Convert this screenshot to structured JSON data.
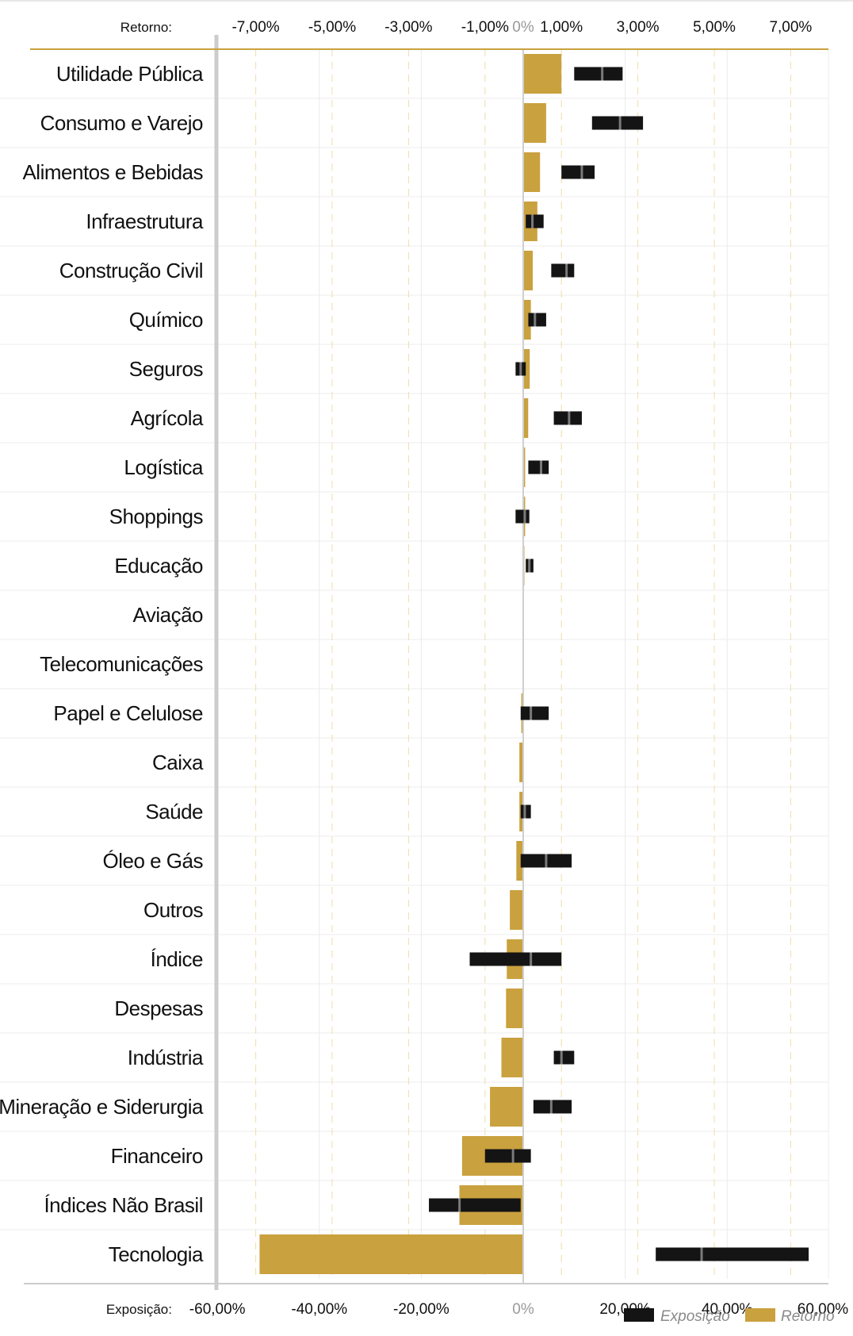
{
  "chart_data": {
    "type": "bar",
    "categories": [
      "Utilidade Pública",
      "Consumo e Varejo",
      "Alimentos e Bebidas",
      "Infraestrutura",
      "Construção Civil",
      "Químico",
      "Seguros",
      "Agrícola",
      "Logística",
      "Shoppings",
      "Educação",
      "Aviação",
      "Telecomunicações",
      "Papel e Celulose",
      "Caixa",
      "Saúde",
      "Óleo e Gás",
      "Outros",
      "Índice",
      "Despesas",
      "Indústria",
      "Mineração e Siderurgia",
      "Financeiro",
      "Índices Não Brasil",
      "Tecnologia"
    ],
    "top_axis": {
      "label": "Retorno:",
      "ticks": [
        "-7,00%",
        "-5,00%",
        "-3,00%",
        "-1,00%",
        "0%",
        "1,00%",
        "3,00%",
        "5,00%",
        "7,00%"
      ],
      "range": [
        -8,
        8
      ]
    },
    "bottom_axis": {
      "label": "Exposição:",
      "ticks": [
        "-60,00%",
        "-40,00%",
        "-20,00%",
        "0%",
        "20,00%",
        "40,00%",
        "60,00%"
      ],
      "range": [
        -60,
        60
      ]
    },
    "series": [
      {
        "name": "Retorno",
        "color": "#c9a13e",
        "axis": "top",
        "values": [
          1.0,
          0.6,
          0.44,
          0.37,
          0.25,
          0.2,
          0.17,
          0.13,
          0.05,
          0.05,
          0.03,
          0,
          0,
          -0.05,
          -0.1,
          -0.1,
          -0.18,
          -0.35,
          -0.43,
          -0.45,
          -0.57,
          -0.87,
          -1.6,
          -1.67,
          -6.9
        ]
      },
      {
        "name": "Exposição",
        "color": "#141414",
        "axis": "bottom",
        "ranges": [
          [
            10,
            19.5
          ],
          [
            13.5,
            23.5
          ],
          [
            7.5,
            14
          ],
          [
            0.5,
            4
          ],
          [
            5.5,
            10
          ],
          [
            1,
            4.5
          ],
          [
            -1.5,
            0.5
          ],
          [
            6,
            11.5
          ],
          [
            1,
            5
          ],
          [
            -1.5,
            1.2
          ],
          [
            0.5,
            2
          ],
          null,
          null,
          [
            -0.5,
            5
          ],
          null,
          [
            -0.5,
            1.5
          ],
          [
            -0.5,
            9.5
          ],
          null,
          [
            -10.5,
            7.5
          ],
          null,
          [
            6,
            10
          ],
          [
            2,
            9.5
          ],
          [
            -7.5,
            1.5
          ],
          [
            -18.5,
            -0.5
          ],
          [
            26,
            56
          ]
        ],
        "markers": [
          15.5,
          19,
          11.5,
          1.8,
          8.5,
          2.3,
          -0.5,
          9,
          3.5,
          0.3,
          1.2,
          null,
          null,
          1.5,
          null,
          0.3,
          4.5,
          null,
          1.5,
          null,
          7.5,
          5.5,
          -2,
          -12.5,
          35
        ]
      }
    ],
    "legend": {
      "position": "bottom-right",
      "items": [
        {
          "label": "Exposição",
          "color": "#141414"
        },
        {
          "label": "Retorno",
          "color": "#c9a13e"
        }
      ]
    },
    "grid": true
  }
}
